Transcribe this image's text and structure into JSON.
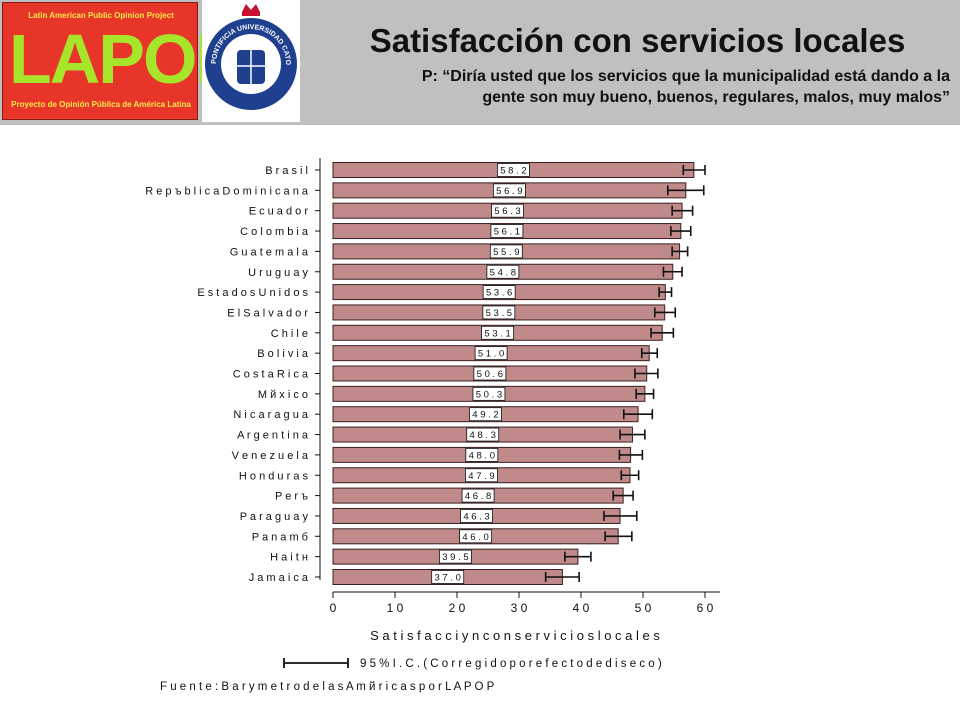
{
  "header": {
    "logo_top_text": "Latin American Public Opinion Project",
    "logo_word": "LAPOP",
    "logo_bottom_text": "Proyecto de Opinión Pública de América Latina",
    "seal_text": "PONTIFICIA UNIVERSIDAD CATOLICA DE CHILE",
    "title": "Satisfacción con servicios locales",
    "subtitle_line1": "P: “Diría usted que los servicios que la municipalidad está dando a la",
    "subtitle_line2": "gente son muy bueno, buenos, regulares, malos, muy malos”"
  },
  "colors": {
    "header_bg": "#c0c0c0",
    "bar_fill": "#c08a8a",
    "bar_stroke": "#3a2020",
    "logo_red": "#e8352a",
    "logo_green": "#a7e52a",
    "logo_yellow": "#ffe94a",
    "seal_blue": "#1f3f8f",
    "seal_red": "#c8102e"
  },
  "chart_data": {
    "type": "bar",
    "orientation": "horizontal",
    "categories": [
      "Brasil",
      "República Dominicana",
      "Ecuador",
      "Colombia",
      "Guatemala",
      "Uruguay",
      "Estados Unidos",
      "El Salvador",
      "Chile",
      "Bolivia",
      "Costa Rica",
      "México",
      "Nicaragua",
      "Argentina",
      "Venezuela",
      "Honduras",
      "Perú",
      "Paraguay",
      "Panamá",
      "Haití",
      "Jamaica"
    ],
    "category_labels": [
      "B r a s i l",
      "R e p ъ b l i c a  D o m i n i c a n a",
      "E c u a d o r",
      "C o l o m b i a",
      "G u a t e m a l a",
      "U r u g u a y",
      "E s t a d o s  U n i d o s",
      "E l  S a l v a d o r",
      "C h i l e",
      "B o l i v i a",
      "C o s t a  R i c a",
      "M й x i c o",
      "N i c a r a g u a",
      "A r g e n t i n a",
      "V e n e z u e l a",
      "H o n d u r a s",
      "P e r ъ",
      "P a r a g u a y",
      "P a n a m б",
      "H a i t н",
      "J a m a i c a"
    ],
    "values": [
      58.2,
      56.9,
      56.3,
      56.1,
      55.9,
      54.8,
      53.6,
      53.5,
      53.1,
      51.0,
      50.6,
      50.3,
      49.2,
      48.3,
      48.0,
      47.9,
      46.8,
      46.3,
      46.0,
      39.5,
      37.0
    ],
    "value_labels": [
      "5 8 . 2",
      "5 6 . 9",
      "5 6 . 3",
      "5 6 . 1",
      "5 5 . 9",
      "5 4 . 8",
      "5 3 . 6",
      "5 3 . 5",
      "5 3 . 1",
      "5 1 . 0",
      "5 0 . 6",
      "5 0 . 3",
      "4 9 . 2",
      "4 8 . 3",
      "4 8 . 0",
      "4 7 . 9",
      "4 6 . 8",
      "4 6 . 3",
      "4 6 . 0",
      "3 9 . 5",
      "3 7 . 0"
    ],
    "ci_low": [
      56.5,
      54.0,
      54.7,
      54.5,
      54.7,
      53.3,
      52.6,
      51.9,
      51.3,
      49.8,
      48.7,
      48.9,
      46.9,
      46.3,
      46.2,
      46.5,
      45.2,
      43.7,
      43.9,
      37.4,
      34.3
    ],
    "ci_high": [
      60.0,
      59.8,
      58.0,
      57.7,
      57.2,
      56.3,
      54.6,
      55.2,
      54.9,
      52.3,
      52.4,
      51.7,
      51.5,
      50.3,
      49.9,
      49.3,
      48.4,
      49.0,
      48.2,
      41.6,
      39.7
    ],
    "xlim": [
      0,
      62
    ],
    "xticks": [
      0,
      10,
      20,
      30,
      40,
      50,
      60
    ],
    "xtick_labels": [
      "0",
      "1 0",
      "2 0",
      "3 0",
      "4 0",
      "5 0",
      "6 0"
    ],
    "xlabel": "S a t i s f a c c i у n  c o n  s e r v i c i o s  l o c a l e s",
    "legend_text": "9 5 %  I . C .  ( C o r r e g i d o  p o r  e f e c t o  d e  d i s e с o )",
    "source_text": "F u e n t e :  B a r у m e t r o  d e  l a s  A m й r i c a s  p o r  L A P O P",
    "grid": false,
    "legend_position": "bottom"
  }
}
